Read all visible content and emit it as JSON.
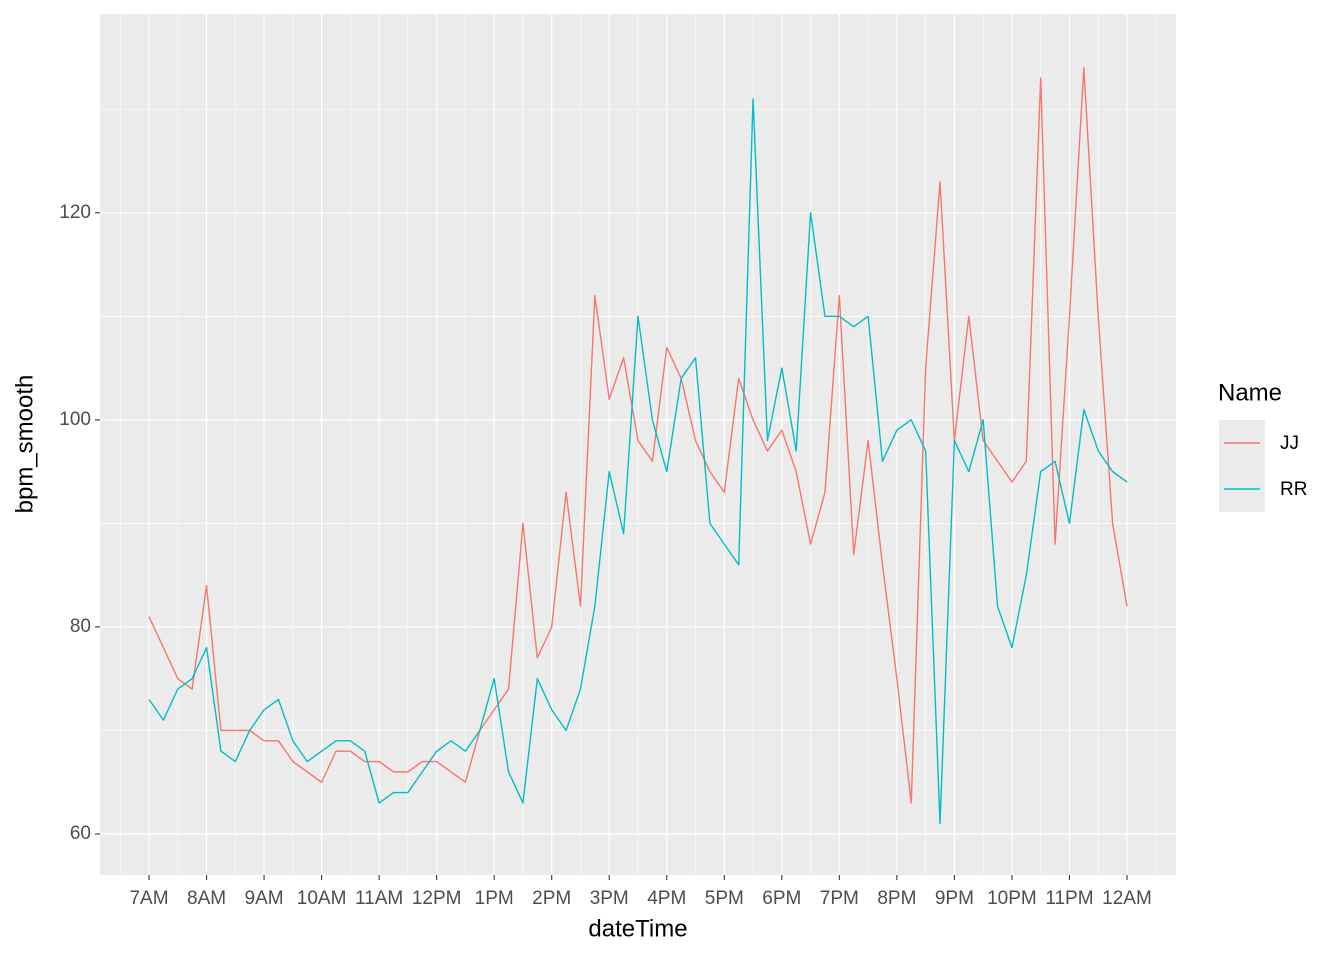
{
  "chart_data": {
    "type": "line",
    "x_label": "dateTime",
    "y_label": "bpm_smooth",
    "legend_title": "Name",
    "legend_position": "right",
    "x": [
      7,
      7.25,
      7.5,
      7.75,
      8,
      8.25,
      8.5,
      8.75,
      9,
      9.25,
      9.5,
      9.75,
      10,
      10.25,
      10.5,
      10.75,
      11,
      11.25,
      11.5,
      11.75,
      12,
      12.25,
      12.5,
      12.75,
      13,
      13.25,
      13.5,
      13.75,
      14,
      14.25,
      14.5,
      14.75,
      15,
      15.25,
      15.5,
      15.75,
      16,
      16.25,
      16.5,
      16.75,
      17,
      17.25,
      17.5,
      17.75,
      18,
      18.25,
      18.5,
      18.75,
      19,
      19.25,
      19.5,
      19.75,
      20,
      20.25,
      20.5,
      20.75,
      21,
      21.25,
      21.5,
      21.75,
      22,
      22.25,
      22.5,
      22.75,
      23,
      23.25,
      23.5,
      23.75,
      24
    ],
    "series": [
      {
        "name": "JJ",
        "color": "#F8766D",
        "values": [
          81,
          78,
          75,
          74,
          84,
          70,
          70,
          70,
          69,
          69,
          67,
          66,
          65,
          68,
          68,
          67,
          67,
          66,
          66,
          67,
          67,
          66,
          65,
          70,
          72,
          74,
          90,
          77,
          80,
          93,
          82,
          112,
          102,
          106,
          98,
          96,
          107,
          104,
          98,
          95,
          93,
          104,
          100,
          97,
          99,
          95,
          88,
          93,
          112,
          87,
          98,
          86,
          75,
          63,
          105,
          123,
          98,
          110,
          98,
          96,
          94,
          96,
          133,
          88,
          110,
          134,
          110,
          90,
          82
        ]
      },
      {
        "name": "RR",
        "color": "#00BFC4",
        "values": [
          73,
          71,
          74,
          75,
          78,
          68,
          67,
          70,
          72,
          73,
          69,
          67,
          68,
          69,
          69,
          68,
          63,
          64,
          64,
          66,
          68,
          69,
          68,
          70,
          75,
          66,
          63,
          75,
          72,
          70,
          74,
          82,
          95,
          89,
          110,
          100,
          95,
          104,
          106,
          90,
          88,
          86,
          131,
          98,
          105,
          97,
          120,
          110,
          110,
          109,
          110,
          96,
          99,
          100,
          97,
          61,
          98,
          95,
          100,
          82,
          78,
          85,
          95,
          96,
          90,
          101,
          97,
          95,
          94
        ]
      }
    ],
    "xlim": [
      6.148,
      24.852
    ],
    "xticks": [
      {
        "value": 7,
        "label": "7AM"
      },
      {
        "value": 8,
        "label": "8AM"
      },
      {
        "value": 9,
        "label": "9AM"
      },
      {
        "value": 10,
        "label": "10AM"
      },
      {
        "value": 11,
        "label": "11AM"
      },
      {
        "value": 12,
        "label": "12PM"
      },
      {
        "value": 13,
        "label": "1PM"
      },
      {
        "value": 14,
        "label": "2PM"
      },
      {
        "value": 15,
        "label": "3PM"
      },
      {
        "value": 16,
        "label": "4PM"
      },
      {
        "value": 17,
        "label": "5PM"
      },
      {
        "value": 18,
        "label": "6PM"
      },
      {
        "value": 19,
        "label": "7PM"
      },
      {
        "value": 20,
        "label": "8PM"
      },
      {
        "value": 21,
        "label": "9PM"
      },
      {
        "value": 22,
        "label": "10PM"
      },
      {
        "value": 23,
        "label": "11PM"
      },
      {
        "value": 24,
        "label": "12AM"
      }
    ],
    "xminor": [
      6.5,
      7.5,
      8.5,
      9.5,
      10.5,
      11.5,
      12.5,
      13.5,
      14.5,
      15.5,
      16.5,
      17.5,
      18.5,
      19.5,
      20.5,
      21.5,
      22.5,
      23.5,
      24.5
    ],
    "ylim": [
      56.04,
      139.2
    ],
    "yticks": [
      60,
      80,
      100,
      120
    ],
    "yminor": [
      70,
      90,
      110,
      130
    ],
    "grid": true
  }
}
